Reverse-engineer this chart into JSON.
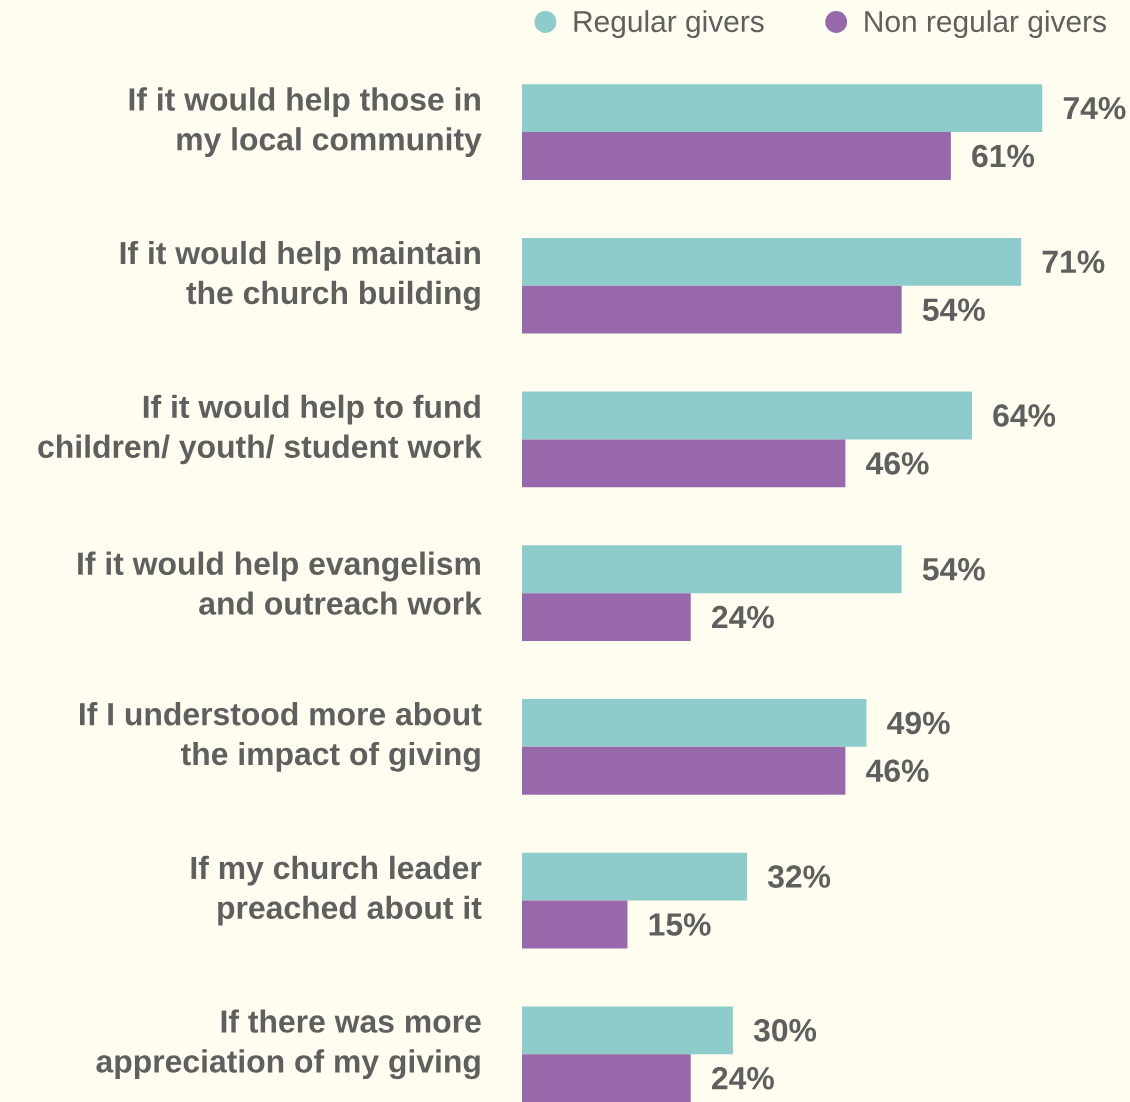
{
  "chart_data": {
    "type": "bar",
    "orientation": "horizontal",
    "categories": [
      "If it would help those in my local community",
      "If it would help maintain the church building",
      "If it would help to fund children/ youth/ student work",
      "If it would help evangelism and outreach work",
      "If I understood more about the impact of giving",
      "If my church leader preached about it",
      "If there was more appreciation of my giving"
    ],
    "series": [
      {
        "name": "Regular givers",
        "color": "#8ecccb",
        "values": [
          74,
          71,
          64,
          54,
          49,
          32,
          30
        ],
        "value_labels": [
          "74%",
          "71%",
          "64%",
          "54%",
          "49%",
          "32%",
          "30%"
        ]
      },
      {
        "name": "Non regular givers",
        "color": "#9769aa",
        "values": [
          61,
          54,
          46,
          24,
          46,
          15,
          24
        ],
        "value_labels": [
          "61%",
          "54%",
          "46%",
          "24%",
          "46%",
          "15%",
          "24%"
        ]
      }
    ],
    "xlim": [
      0,
      86
    ],
    "tick_labels": "y",
    "legend": "top right"
  }
}
